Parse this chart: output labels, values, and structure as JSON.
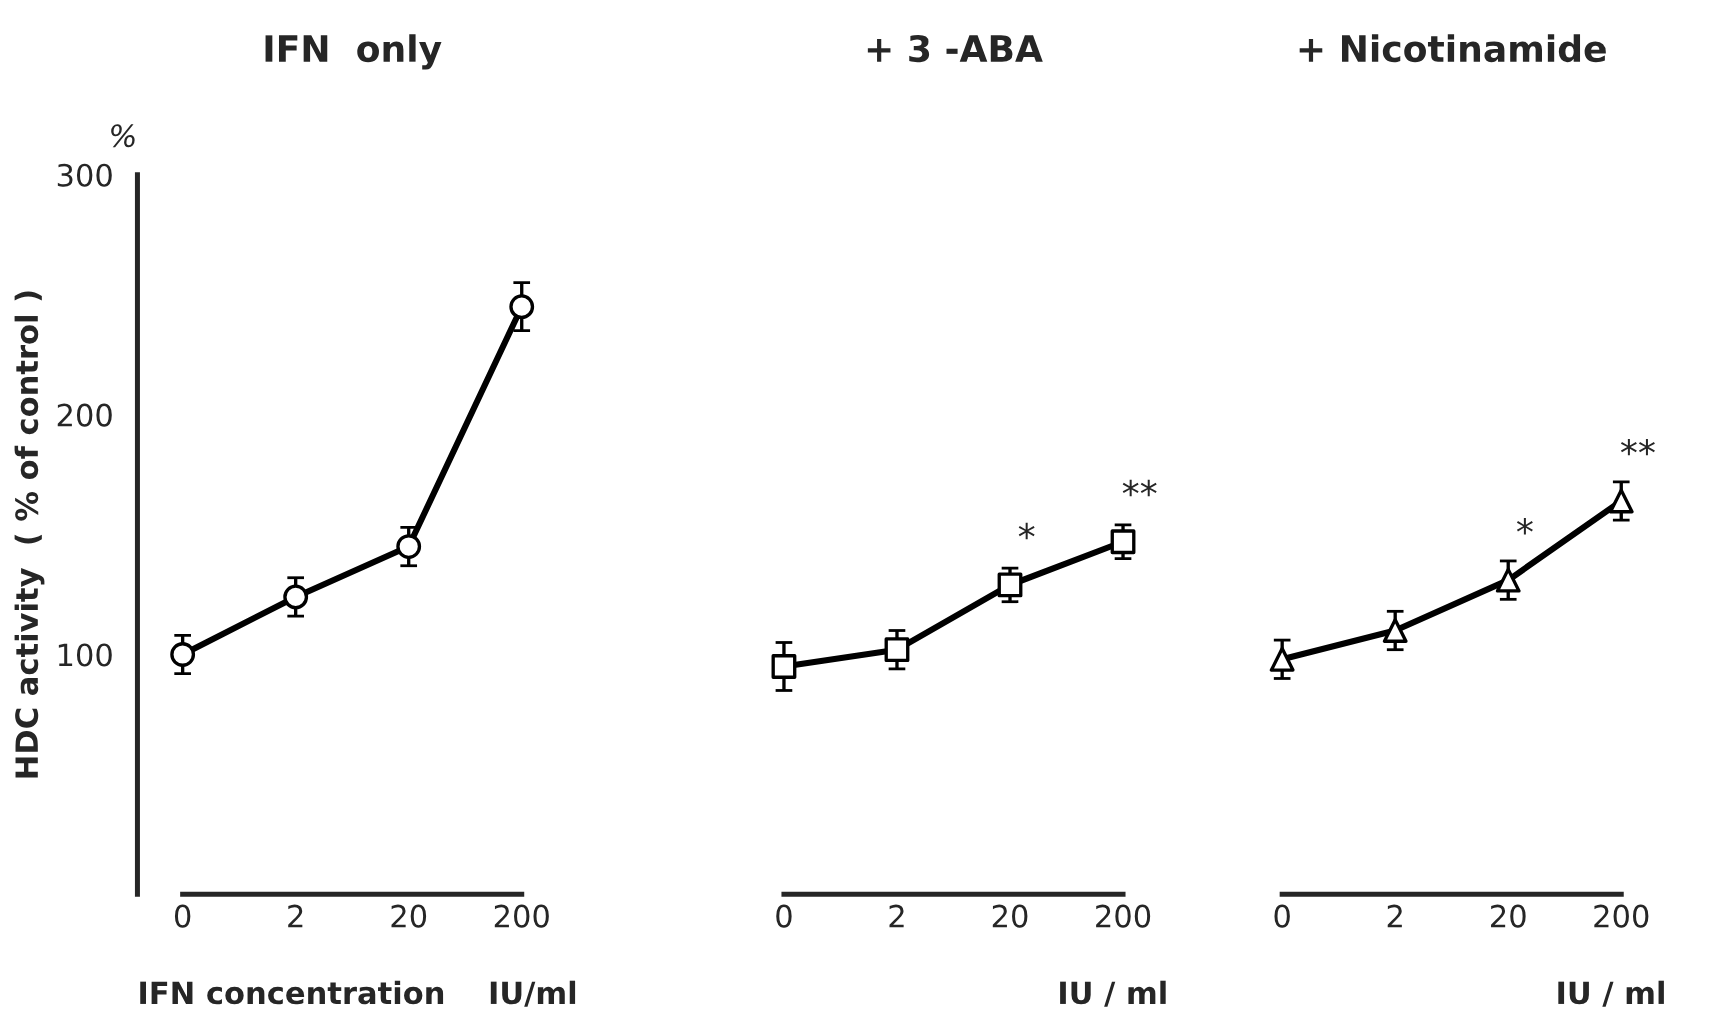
{
  "chart_data": [
    {
      "type": "line",
      "title": "IFN  only",
      "xlabel": "IFN concentration    IU/ml",
      "ylabel": "HDC activity  ( % of control )",
      "categories": [
        "0",
        "2",
        "20",
        "200"
      ],
      "values": [
        100,
        124,
        145,
        245
      ],
      "errors": [
        8,
        8,
        8,
        10
      ],
      "color": "#000000",
      "marker": "circle",
      "line_style": "solid",
      "ylim": [
        0,
        300
      ],
      "yticks": [
        100,
        200,
        300
      ],
      "annotations": [
        "%"
      ]
    },
    {
      "type": "line",
      "title": "+ 3 -ABA",
      "xlabel": "IU / ml",
      "categories": [
        "0",
        "2",
        "20",
        "200"
      ],
      "values": [
        95,
        102,
        129,
        147
      ],
      "errors": [
        10,
        8,
        7,
        7
      ],
      "color": "#000000",
      "marker": "square",
      "line_style": "solid",
      "ylim": [
        0,
        300
      ],
      "tick_labels": "x",
      "annotations": [
        {
          "text": "*",
          "x": "20",
          "y": 129
        },
        {
          "text": "**",
          "x": "200",
          "y": 147
        }
      ]
    },
    {
      "type": "line",
      "title": "+ Nicotinamide",
      "xlabel": "IU / ml",
      "categories": [
        "0",
        "2",
        "20",
        "200"
      ],
      "values": [
        98,
        110,
        131,
        164
      ],
      "errors": [
        8,
        8,
        8,
        8
      ],
      "color": "#000000",
      "marker": "triangle",
      "line_style": "solid",
      "ylim": [
        0,
        300
      ],
      "tick_labels": "x",
      "annotations": [
        {
          "text": "*",
          "x": "20",
          "y": 131
        },
        {
          "text": "**",
          "x": "200",
          "y": 164
        }
      ]
    }
  ]
}
